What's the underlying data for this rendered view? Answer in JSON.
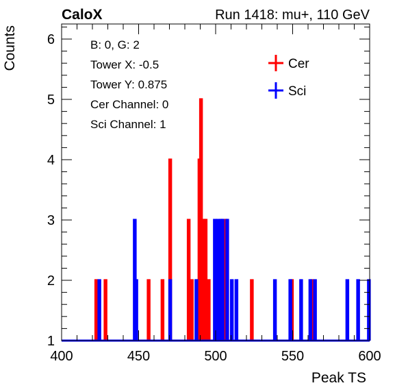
{
  "header": {
    "brand": "CaloX",
    "run_info": "Run 1418: mu+, 110 GeV"
  },
  "info_box": {
    "lines": [
      "B: 0, G: 2",
      "Tower X: -0.5",
      "Tower Y: 0.875",
      "Cer Channel: 0",
      "Sci Channel: 1"
    ]
  },
  "chart_data": {
    "type": "histogram",
    "title": "",
    "xlabel": "Peak TS",
    "ylabel": "Counts",
    "xlim": [
      400,
      600
    ],
    "ylim": [
      1,
      6.25
    ],
    "xticks": [
      400,
      450,
      500,
      550,
      600
    ],
    "yticks": [
      1,
      2,
      3,
      4,
      5,
      6
    ],
    "grid": false,
    "legend_position": "top-right",
    "bin_width": 1,
    "baseline": 1,
    "series": [
      {
        "name": "Cer",
        "color": "#ff0000",
        "bins": [
          {
            "x": 422,
            "y": 2
          },
          {
            "x": 428,
            "y": 2
          },
          {
            "x": 456,
            "y": 2
          },
          {
            "x": 465,
            "y": 2
          },
          {
            "x": 470,
            "y": 4
          },
          {
            "x": 482,
            "y": 3
          },
          {
            "x": 484,
            "y": 2
          },
          {
            "x": 488,
            "y": 2
          },
          {
            "x": 489,
            "y": 4
          },
          {
            "x": 490,
            "y": 5
          },
          {
            "x": 492,
            "y": 3
          },
          {
            "x": 493,
            "y": 3
          },
          {
            "x": 495,
            "y": 2
          },
          {
            "x": 502,
            "y": 2
          },
          {
            "x": 506,
            "y": 3
          },
          {
            "x": 523,
            "y": 2
          },
          {
            "x": 549,
            "y": 2
          },
          {
            "x": 562,
            "y": 2
          }
        ]
      },
      {
        "name": "Sci",
        "color": "#0000ff",
        "bins": [
          {
            "x": 424,
            "y": 2
          },
          {
            "x": 447,
            "y": 3
          },
          {
            "x": 448,
            "y": 2
          },
          {
            "x": 470,
            "y": 2
          },
          {
            "x": 487,
            "y": 2
          },
          {
            "x": 499,
            "y": 3
          },
          {
            "x": 501,
            "y": 3
          },
          {
            "x": 503,
            "y": 3
          },
          {
            "x": 504,
            "y": 3
          },
          {
            "x": 507,
            "y": 3
          },
          {
            "x": 510,
            "y": 2
          },
          {
            "x": 513,
            "y": 2
          },
          {
            "x": 538,
            "y": 2
          },
          {
            "x": 548,
            "y": 2
          },
          {
            "x": 555,
            "y": 2
          },
          {
            "x": 561,
            "y": 2
          },
          {
            "x": 564,
            "y": 2
          },
          {
            "x": 585,
            "y": 2
          },
          {
            "x": 592,
            "y": 2
          },
          {
            "x": 599,
            "y": 2
          }
        ]
      }
    ]
  }
}
